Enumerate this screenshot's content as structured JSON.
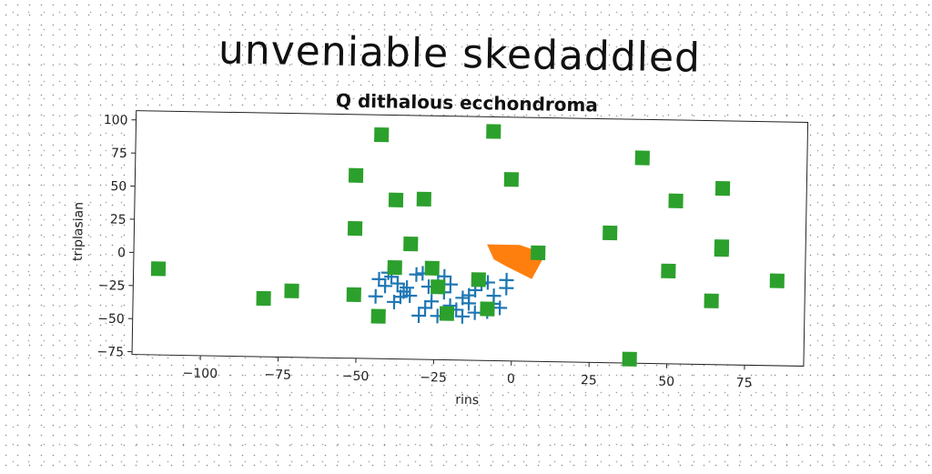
{
  "suptitle": "unveniable skedaddled",
  "chart_data": {
    "type": "scatter",
    "title": "Q dithalous ecchondroma",
    "xlabel": "rins",
    "ylabel": "triplasian",
    "xlim": [
      -122,
      94
    ],
    "ylim": [
      -77,
      107
    ],
    "xticks": [
      -100,
      -75,
      -50,
      -25,
      0,
      25,
      50,
      75
    ],
    "yticks": [
      -75,
      -50,
      -25,
      0,
      25,
      50,
      75,
      100
    ],
    "grid": false,
    "series": [
      {
        "marker": "plus",
        "color": "#1f77b4",
        "points": [
          [
            -43,
            -17
          ],
          [
            -41,
            -22
          ],
          [
            -39,
            -15
          ],
          [
            -37,
            -20
          ],
          [
            -35,
            -26
          ],
          [
            -33,
            -29
          ],
          [
            -31,
            -13
          ],
          [
            -29,
            -12
          ],
          [
            -27,
            -22
          ],
          [
            -26,
            -33
          ],
          [
            -24,
            -18
          ],
          [
            -22,
            -26
          ],
          [
            -20,
            -36
          ],
          [
            -18,
            -39
          ],
          [
            -16,
            -30
          ],
          [
            -14,
            -34
          ],
          [
            -12,
            -24
          ],
          [
            -10,
            -19
          ],
          [
            -8,
            -40
          ],
          [
            -6,
            -28
          ],
          [
            -4,
            -37
          ],
          [
            -2,
            -16
          ],
          [
            -38,
            -34
          ],
          [
            -30,
            -44
          ],
          [
            -24,
            -44
          ],
          [
            -16,
            -44
          ],
          [
            -12,
            -41
          ],
          [
            -36,
            -30
          ],
          [
            -40,
            -12
          ],
          [
            -20,
            -20
          ],
          [
            -8,
            -18
          ],
          [
            -28,
            -38
          ],
          [
            -34,
            -23
          ],
          [
            -14,
            -28
          ],
          [
            -6,
            -34
          ],
          [
            -44,
            -30
          ],
          [
            -22,
            -14
          ],
          [
            -2,
            -22
          ]
        ]
      },
      {
        "marker": "polygon",
        "color": "#ff7f0e",
        "points": [
          [
            -8,
            10
          ],
          [
            2,
            10
          ],
          [
            10,
            4
          ],
          [
            6,
            -14
          ],
          [
            -2,
            -5
          ],
          [
            -6,
            0
          ]
        ]
      },
      {
        "marker": "square",
        "color": "#2ca02c",
        "points": [
          [
            -114,
            -12
          ],
          [
            -80,
            -33
          ],
          [
            -71,
            -27
          ],
          [
            -51,
            -29
          ],
          [
            -51,
            21
          ],
          [
            -51,
            61
          ],
          [
            -43,
            92
          ],
          [
            -38,
            -8
          ],
          [
            -38,
            43
          ],
          [
            -33,
            10
          ],
          [
            -29,
            44
          ],
          [
            -26,
            -8
          ],
          [
            -24,
            -22
          ],
          [
            -21,
            -42
          ],
          [
            -11,
            -16
          ],
          [
            -8,
            -38
          ],
          [
            -7,
            96
          ],
          [
            -1,
            60
          ],
          [
            8,
            5
          ],
          [
            31,
            21
          ],
          [
            38,
            -74
          ],
          [
            41,
            78
          ],
          [
            50,
            -7
          ],
          [
            52,
            46
          ],
          [
            64,
            -29
          ],
          [
            67,
            12
          ],
          [
            67,
            56
          ],
          [
            85,
            -13
          ],
          [
            67,
            10
          ],
          [
            -43,
            -45
          ]
        ]
      }
    ]
  }
}
